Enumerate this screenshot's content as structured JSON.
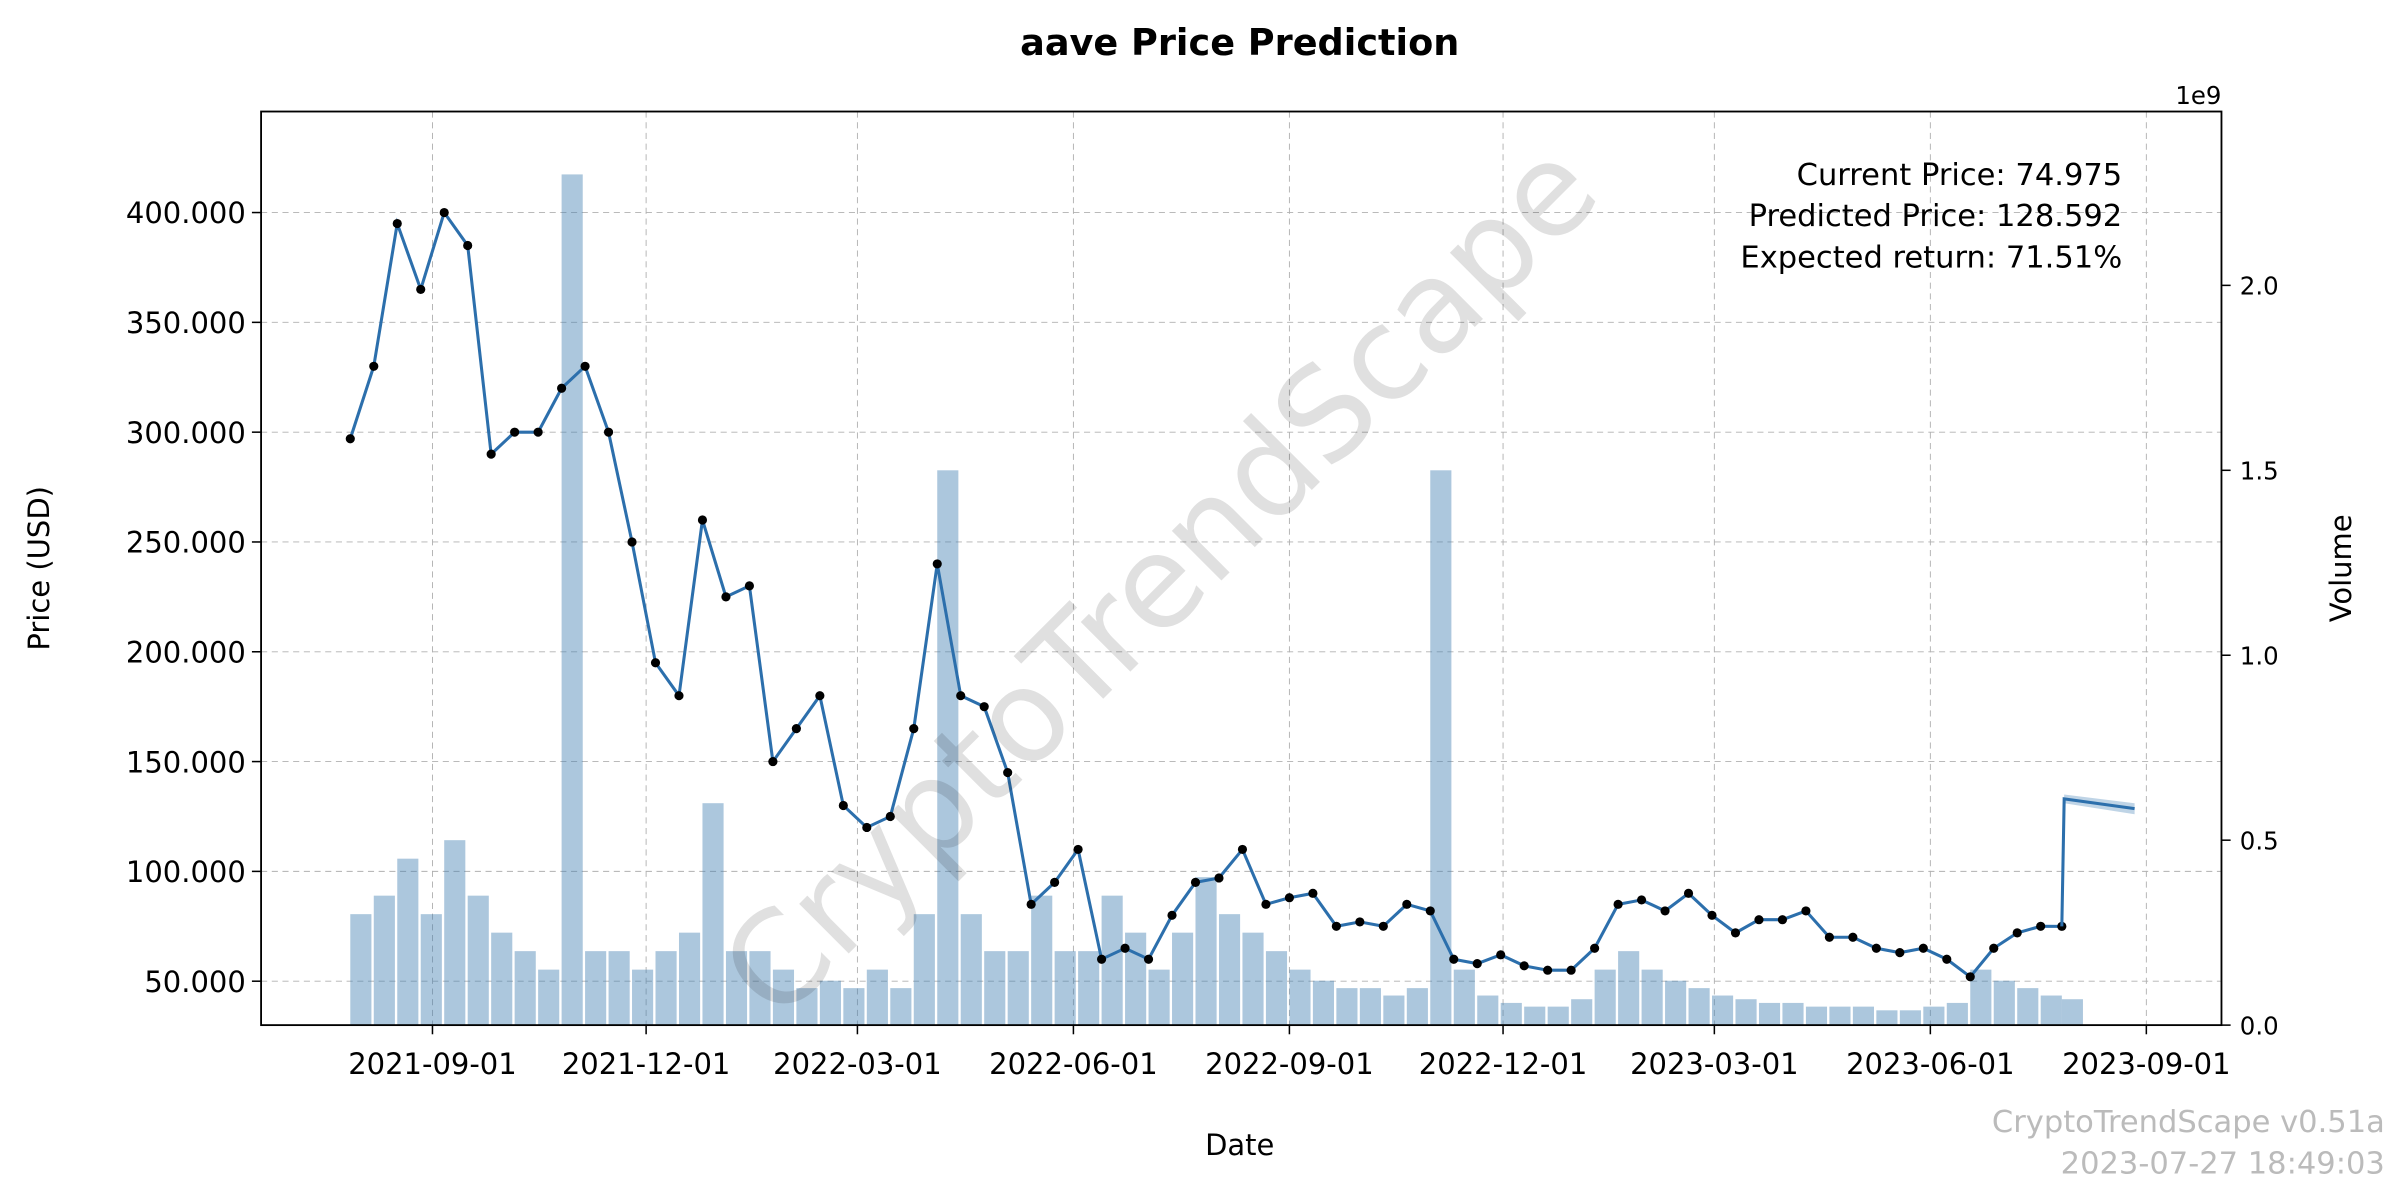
{
  "chart_data": {
    "type": "line",
    "title": "aave Price Prediction",
    "xlabel": "Date",
    "ylabel": "Price (USD)",
    "y2label": "Volume",
    "y2offset": "1e9",
    "annotations": [
      "Current Price: 74.975",
      "Predicted Price: 128.592",
      "Expected return: 71.51%"
    ],
    "watermark": "CryptoTrendScape",
    "footer": [
      "CryptoTrendScape v0.51a",
      "2023-07-27 18:49:03"
    ],
    "grid": true,
    "xlim": [
      "2021-06-20",
      "2023-10-03"
    ],
    "xticks": [
      "2021-09-01",
      "2021-12-01",
      "2022-03-01",
      "2022-06-01",
      "2022-09-01",
      "2022-12-01",
      "2023-03-01",
      "2023-06-01",
      "2023-09-01"
    ],
    "ylim": [
      30,
      446
    ],
    "yticks": [
      {
        "value": 50,
        "label": "50.000"
      },
      {
        "value": 100,
        "label": "100.000"
      },
      {
        "value": 150,
        "label": "150.000"
      },
      {
        "value": 200,
        "label": "200.000"
      },
      {
        "value": 250,
        "label": "250.000"
      },
      {
        "value": 300,
        "label": "300.000"
      },
      {
        "value": 350,
        "label": "350.000"
      },
      {
        "value": 400,
        "label": "400.000"
      }
    ],
    "y2lim": [
      0,
      2.47
    ],
    "y2ticks": [
      {
        "value": 0,
        "label": "0.0"
      },
      0.5,
      {
        "value": 1,
        "label": "1.0"
      },
      1.5,
      {
        "value": 2,
        "label": "2.0"
      }
    ],
    "x": [
      "2021-07-28",
      "2021-08-07",
      "2021-08-17",
      "2021-08-27",
      "2021-09-06",
      "2021-09-16",
      "2021-09-26",
      "2021-10-06",
      "2021-10-16",
      "2021-10-26",
      "2021-11-05",
      "2021-11-15",
      "2021-11-25",
      "2021-12-05",
      "2021-12-15",
      "2021-12-25",
      "2022-01-04",
      "2022-01-14",
      "2022-01-24",
      "2022-02-03",
      "2022-02-13",
      "2022-02-23",
      "2022-03-05",
      "2022-03-15",
      "2022-03-25",
      "2022-04-04",
      "2022-04-14",
      "2022-04-24",
      "2022-05-04",
      "2022-05-14",
      "2022-05-24",
      "2022-06-03",
      "2022-06-13",
      "2022-06-23",
      "2022-07-03",
      "2022-07-13",
      "2022-07-23",
      "2022-08-02",
      "2022-08-12",
      "2022-08-22",
      "2022-09-01",
      "2022-09-11",
      "2022-09-21",
      "2022-10-01",
      "2022-10-11",
      "2022-10-21",
      "2022-10-31",
      "2022-11-10",
      "2022-11-20",
      "2022-11-30",
      "2022-12-10",
      "2022-12-20",
      "2022-12-30",
      "2023-01-09",
      "2023-01-19",
      "2023-01-29",
      "2023-02-08",
      "2023-02-18",
      "2023-02-28",
      "2023-03-10",
      "2023-03-20",
      "2023-03-30",
      "2023-04-09",
      "2023-04-19",
      "2023-04-29",
      "2023-05-09",
      "2023-05-19",
      "2023-05-29",
      "2023-06-08",
      "2023-06-18",
      "2023-06-28",
      "2023-07-08",
      "2023-07-18",
      "2023-07-27"
    ],
    "series": [
      {
        "name": "Price",
        "color": "#2c6fac",
        "values": [
          297,
          330,
          395,
          365,
          400,
          385,
          290,
          300,
          300,
          320,
          330,
          300,
          250,
          195,
          180,
          260,
          225,
          230,
          150,
          165,
          180,
          130,
          120,
          125,
          165,
          240,
          180,
          175,
          145,
          85,
          95,
          110,
          60,
          65,
          60,
          80,
          95,
          97,
          110,
          85,
          88,
          90,
          75,
          77,
          75,
          85,
          82,
          60,
          58,
          62,
          57,
          55,
          55,
          65,
          85,
          87,
          82,
          90,
          80,
          72,
          78,
          78,
          82,
          70,
          70,
          65,
          63,
          65,
          60,
          52,
          65,
          72,
          75,
          74.975
        ]
      },
      {
        "name": "Volume",
        "color": "#4682b4",
        "axis": "y2",
        "values": [
          0.3,
          0.35,
          0.45,
          0.3,
          0.5,
          0.35,
          0.25,
          0.2,
          0.15,
          2.3,
          0.2,
          0.2,
          0.15,
          0.2,
          0.25,
          0.6,
          0.2,
          0.2,
          0.15,
          0.1,
          0.12,
          0.1,
          0.15,
          0.1,
          0.3,
          1.5,
          0.3,
          0.2,
          0.2,
          0.35,
          0.2,
          0.2,
          0.35,
          0.25,
          0.15,
          0.25,
          0.4,
          0.3,
          0.25,
          0.2,
          0.15,
          0.12,
          0.1,
          0.1,
          0.08,
          0.1,
          1.5,
          0.15,
          0.08,
          0.06,
          0.05,
          0.05,
          0.07,
          0.15,
          0.2,
          0.15,
          0.12,
          0.1,
          0.08,
          0.07,
          0.06,
          0.06,
          0.05,
          0.05,
          0.05,
          0.04,
          0.04,
          0.05,
          0.06,
          0.15,
          0.12,
          0.1,
          0.08,
          0.07
        ]
      }
    ],
    "forecast": {
      "color": "#2c6fac",
      "x": [
        "2023-07-27",
        "2023-07-28",
        "2023-08-27"
      ],
      "values": [
        74.975,
        133,
        128.592
      ],
      "lower": [
        74.975,
        131,
        126
      ],
      "upper": [
        74.975,
        135,
        131
      ]
    }
  }
}
